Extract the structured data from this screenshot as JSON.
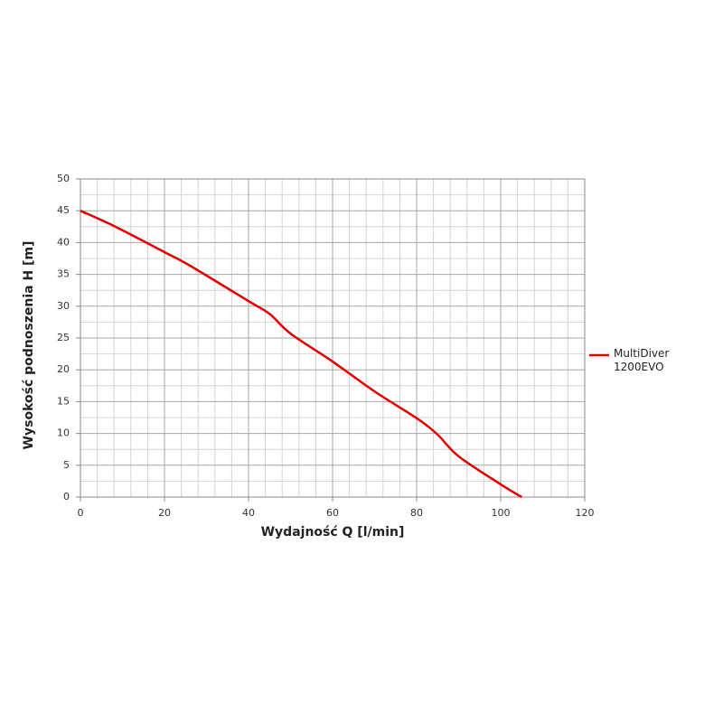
{
  "chart_data": {
    "type": "line",
    "x_label": "Wydajność Q [l/min]",
    "y_label": "Wysokość podnoszenia H [m]",
    "x": [
      0,
      8,
      20,
      26,
      40,
      45,
      50,
      60,
      70,
      80,
      85,
      90,
      100,
      105
    ],
    "series": [
      {
        "name": "MultiDiver 1200EVO",
        "color": "#e00000",
        "values": [
          45,
          42.6,
          38.5,
          36.4,
          30.8,
          28.8,
          25.7,
          21.3,
          16.6,
          12.4,
          9.8,
          6.4,
          2.0,
          0
        ]
      }
    ],
    "xlim": [
      0,
      120
    ],
    "xticks": [
      0,
      20,
      40,
      60,
      80,
      100,
      120
    ],
    "ylim": [
      0,
      50
    ],
    "yticks": [
      0,
      5,
      10,
      15,
      20,
      25,
      30,
      35,
      40,
      45,
      50
    ],
    "grid": true,
    "minor_grid": {
      "x": 5,
      "y": 2
    },
    "legend": "right"
  }
}
